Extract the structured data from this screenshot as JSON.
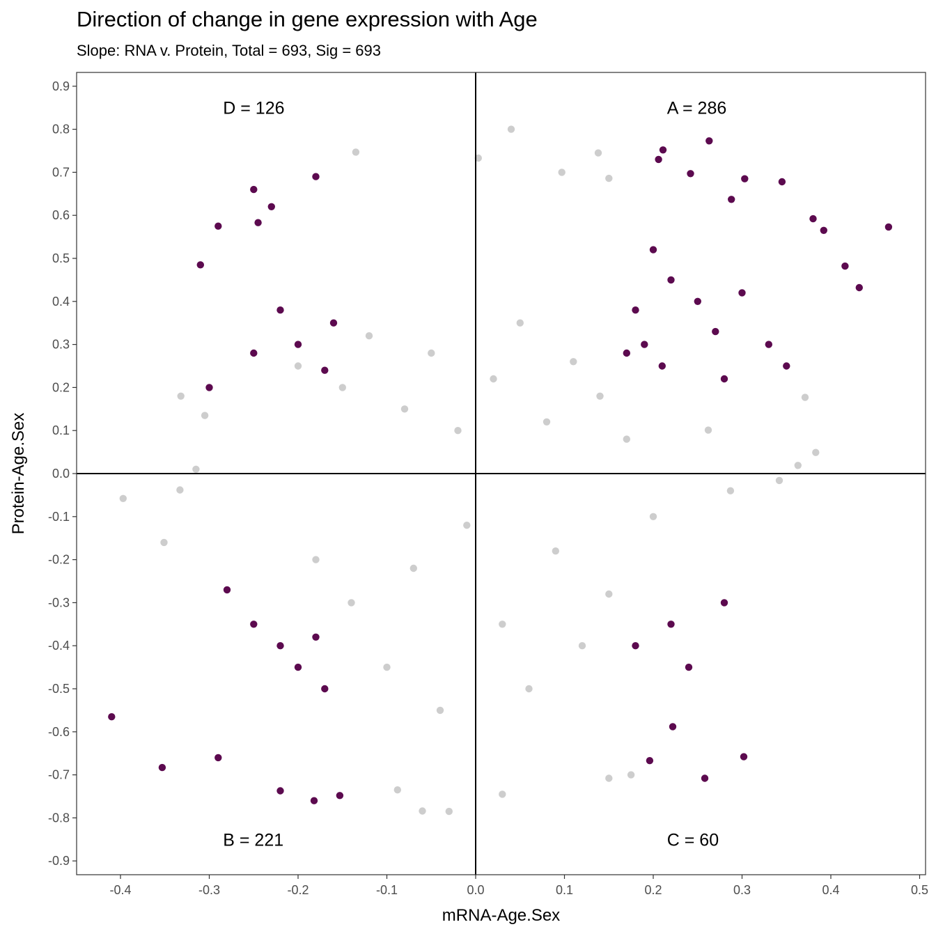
{
  "chart_data": {
    "type": "scatter",
    "title": "Direction of change in gene expression with Age",
    "subtitle": "Slope: RNA v. Protein, Total = 693, Sig = 693",
    "xlabel": "mRNA-Age.Sex",
    "ylabel": "Protein-Age.Sex",
    "xlim": [
      -0.45,
      0.51
    ],
    "ylim": [
      -0.94,
      0.94
    ],
    "x_ticks": [
      "-0.4",
      "-0.3",
      "-0.2",
      "-0.1",
      "0.0",
      "0.1",
      "0.2",
      "0.3",
      "0.4",
      "0.5"
    ],
    "y_ticks": [
      "0.9",
      "0.8",
      "0.7",
      "0.6",
      "0.5",
      "0.4",
      "0.3",
      "0.2",
      "0.1",
      "0.0",
      "-0.1",
      "-0.2",
      "-0.3",
      "-0.4",
      "-0.5",
      "-0.6",
      "-0.7",
      "-0.8",
      "-0.9"
    ],
    "grid": false,
    "reference_lines": {
      "x": 0,
      "y": 0
    },
    "colors": {
      "nonsignificant": "#595959",
      "significant": "#5c0a4f"
    },
    "quadrant_labels": [
      {
        "label": "D =  126",
        "x": -0.25,
        "y": 0.85
      },
      {
        "label": "A =  286",
        "x": 0.25,
        "y": 0.85
      },
      {
        "label": "B =  221",
        "x": -0.25,
        "y": -0.85
      },
      {
        "label": "C =  60",
        "x": 0.25,
        "y": -0.85
      }
    ],
    "series": [
      {
        "opacity": 0.3,
        "points": [
          [
            0.04,
            0.8
          ],
          [
            -0.135,
            0.747
          ],
          [
            0.138,
            0.745
          ],
          [
            0.003,
            0.733
          ],
          [
            0.097,
            0.7
          ],
          [
            0.15,
            0.686
          ],
          [
            -0.397,
            -0.058
          ],
          [
            -0.351,
            -0.16
          ],
          [
            -0.332,
            0.18
          ],
          [
            -0.333,
            -0.038
          ],
          [
            -0.315,
            0.01
          ],
          [
            -0.305,
            0.135
          ],
          [
            0.383,
            0.049
          ],
          [
            0.363,
            0.019
          ],
          [
            0.342,
            -0.016
          ],
          [
            0.371,
            0.177
          ],
          [
            0.262,
            0.101
          ],
          [
            0.287,
            -0.04
          ],
          [
            -0.03,
            -0.785
          ],
          [
            -0.06,
            -0.784
          ],
          [
            0.03,
            -0.745
          ],
          [
            -0.088,
            -0.735
          ],
          [
            0.175,
            -0.7
          ],
          [
            0.15,
            -0.708
          ],
          [
            -0.2,
            0.25
          ],
          [
            -0.15,
            0.2
          ],
          [
            -0.12,
            0.32
          ],
          [
            -0.08,
            0.15
          ],
          [
            -0.05,
            0.28
          ],
          [
            -0.02,
            0.1
          ],
          [
            0.02,
            0.22
          ],
          [
            0.05,
            0.35
          ],
          [
            0.08,
            0.12
          ],
          [
            0.11,
            0.26
          ],
          [
            0.14,
            0.18
          ],
          [
            0.17,
            0.08
          ],
          [
            -0.18,
            -0.2
          ],
          [
            -0.14,
            -0.3
          ],
          [
            -0.1,
            -0.45
          ],
          [
            -0.07,
            -0.22
          ],
          [
            -0.04,
            -0.55
          ],
          [
            -0.01,
            -0.12
          ],
          [
            0.03,
            -0.35
          ],
          [
            0.06,
            -0.5
          ],
          [
            0.09,
            -0.18
          ],
          [
            0.12,
            -0.4
          ],
          [
            0.15,
            -0.28
          ],
          [
            0.2,
            -0.1
          ]
        ]
      },
      {
        "opacity": 1.0,
        "points": [
          [
            0.465,
            0.573
          ],
          [
            0.432,
            0.432
          ],
          [
            0.263,
            0.773
          ],
          [
            0.211,
            0.752
          ],
          [
            0.206,
            0.73
          ],
          [
            0.38,
            0.592
          ],
          [
            0.392,
            0.565
          ],
          [
            0.416,
            0.482
          ],
          [
            0.345,
            0.678
          ],
          [
            0.303,
            0.685
          ],
          [
            0.288,
            0.637
          ],
          [
            0.242,
            0.697
          ],
          [
            0.2,
            0.52
          ],
          [
            0.22,
            0.45
          ],
          [
            0.18,
            0.38
          ],
          [
            0.25,
            0.4
          ],
          [
            0.3,
            0.42
          ],
          [
            0.33,
            0.3
          ],
          [
            0.17,
            0.28
          ],
          [
            0.19,
            0.3
          ],
          [
            0.21,
            0.25
          ],
          [
            0.27,
            0.33
          ],
          [
            0.28,
            0.22
          ],
          [
            0.35,
            0.25
          ],
          [
            -0.25,
            0.66
          ],
          [
            -0.18,
            0.69
          ],
          [
            -0.29,
            0.575
          ],
          [
            -0.245,
            0.583
          ],
          [
            -0.23,
            0.62
          ],
          [
            -0.31,
            0.485
          ],
          [
            -0.22,
            0.38
          ],
          [
            -0.2,
            0.3
          ],
          [
            -0.17,
            0.24
          ],
          [
            -0.25,
            0.28
          ],
          [
            -0.3,
            0.2
          ],
          [
            -0.16,
            0.35
          ],
          [
            -0.41,
            -0.565
          ],
          [
            -0.353,
            -0.683
          ],
          [
            -0.22,
            -0.737
          ],
          [
            -0.182,
            -0.76
          ],
          [
            -0.153,
            -0.748
          ],
          [
            -0.29,
            -0.66
          ],
          [
            -0.22,
            -0.4
          ],
          [
            -0.2,
            -0.45
          ],
          [
            -0.18,
            -0.38
          ],
          [
            -0.25,
            -0.35
          ],
          [
            -0.17,
            -0.5
          ],
          [
            -0.28,
            -0.27
          ],
          [
            0.258,
            -0.708
          ],
          [
            0.196,
            -0.667
          ],
          [
            0.302,
            -0.658
          ],
          [
            0.222,
            -0.588
          ],
          [
            0.22,
            -0.35
          ],
          [
            0.28,
            -0.3
          ],
          [
            0.18,
            -0.4
          ],
          [
            0.24,
            -0.45
          ]
        ]
      }
    ]
  }
}
